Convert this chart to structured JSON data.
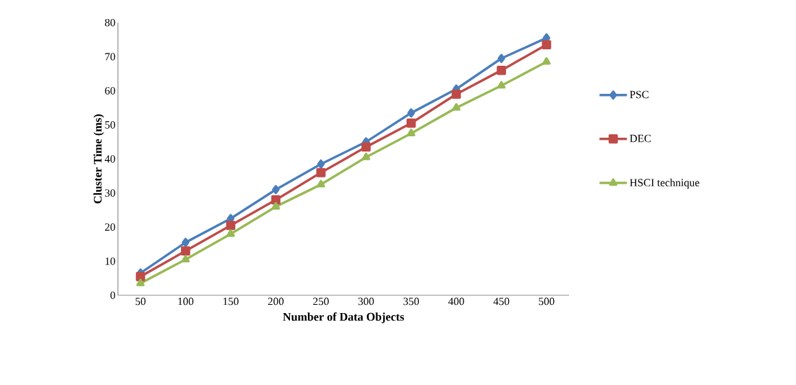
{
  "chart_data": {
    "type": "line",
    "xlabel": "Number of Data Objects",
    "ylabel": "Cluster Time (ms)",
    "categories": [
      "50",
      "100",
      "150",
      "200",
      "250",
      "300",
      "350",
      "400",
      "450",
      "500"
    ],
    "series": [
      {
        "name": "PSC",
        "color": "#4a7ebb",
        "marker": "diamond",
        "values": [
          6.5,
          15.5,
          22.5,
          31,
          38.5,
          45,
          53.5,
          60.5,
          69.5,
          75.5
        ]
      },
      {
        "name": "DEC",
        "color": "#be4b48",
        "marker": "square",
        "values": [
          5.5,
          13,
          20.5,
          28,
          36,
          43.5,
          50.5,
          59,
          66,
          73.5
        ]
      },
      {
        "name": "HSCI technique",
        "color": "#98b954",
        "marker": "triangle",
        "values": [
          3.5,
          10.5,
          18,
          26,
          32.5,
          40.5,
          47.5,
          55,
          61.5,
          68.5
        ]
      }
    ],
    "ylim": [
      0,
      80
    ],
    "yticks": [
      0,
      10,
      20,
      30,
      40,
      50,
      60,
      70,
      80
    ],
    "grid": false,
    "legend": "right",
    "line_style": "solid"
  }
}
